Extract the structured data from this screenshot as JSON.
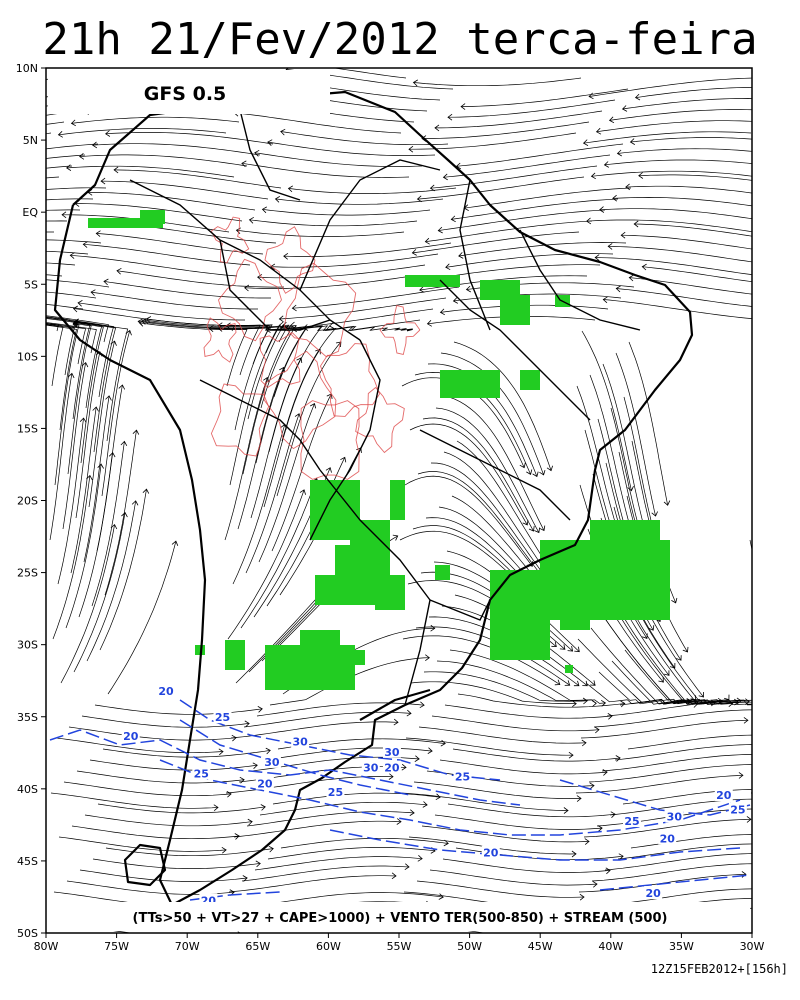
{
  "title": "21h 21/Fev/2012 terca-feira",
  "model_label": "GFS 0.5",
  "legend_text": "(TTs>50 + VT>27 + CAPE>1000) + VENTO TER(500-850) + STREAM (500)",
  "footer_text": "12Z15FEB2012+[156h]",
  "map": {
    "lon_range": [
      -80,
      -30
    ],
    "lat_range": [
      -50,
      10
    ],
    "lat_ticks": [
      "10N",
      "5N",
      "EQ",
      "5S",
      "10S",
      "15S",
      "20S",
      "25S",
      "30S",
      "35S",
      "40S",
      "45S",
      "50S"
    ],
    "lon_ticks": [
      "80W",
      "75W",
      "70W",
      "65W",
      "60W",
      "55W",
      "50W",
      "45W",
      "40W",
      "35W",
      "30W"
    ],
    "colors": {
      "instability_area": "#22cc22",
      "wind_contours": "#2244dd",
      "cape_contours": "#dd4444",
      "streamlines": "#000000",
      "coastline": "#000000"
    },
    "wind_contour_labels": [
      {
        "value": "20",
        "lon": -71.5,
        "lat": -33.3
      },
      {
        "value": "25",
        "lon": -67.5,
        "lat": -35.1
      },
      {
        "value": "20",
        "lon": -74.0,
        "lat": -36.4
      },
      {
        "value": "30",
        "lon": -62.0,
        "lat": -36.8
      },
      {
        "value": "30",
        "lon": -64.0,
        "lat": -38.2
      },
      {
        "value": "25",
        "lon": -69.0,
        "lat": -39.0
      },
      {
        "value": "20",
        "lon": -64.5,
        "lat": -39.7
      },
      {
        "value": "30",
        "lon": -57.0,
        "lat": -38.6
      },
      {
        "value": "20",
        "lon": -55.5,
        "lat": -38.6
      },
      {
        "value": "30",
        "lon": -55.5,
        "lat": -37.5
      },
      {
        "value": "25",
        "lon": -50.5,
        "lat": -39.2
      },
      {
        "value": "25",
        "lon": -59.5,
        "lat": -40.3
      },
      {
        "value": "25",
        "lon": -38.5,
        "lat": -42.3
      },
      {
        "value": "30",
        "lon": -35.5,
        "lat": -42.0
      },
      {
        "value": "20",
        "lon": -32.0,
        "lat": -40.5
      },
      {
        "value": "25",
        "lon": -31.0,
        "lat": -41.5
      },
      {
        "value": "20",
        "lon": -36.0,
        "lat": -43.5
      },
      {
        "value": "20",
        "lon": -48.5,
        "lat": -44.5
      },
      {
        "value": "20",
        "lon": -37.0,
        "lat": -47.3
      },
      {
        "value": "20",
        "lon": -68.5,
        "lat": -47.8
      }
    ]
  }
}
